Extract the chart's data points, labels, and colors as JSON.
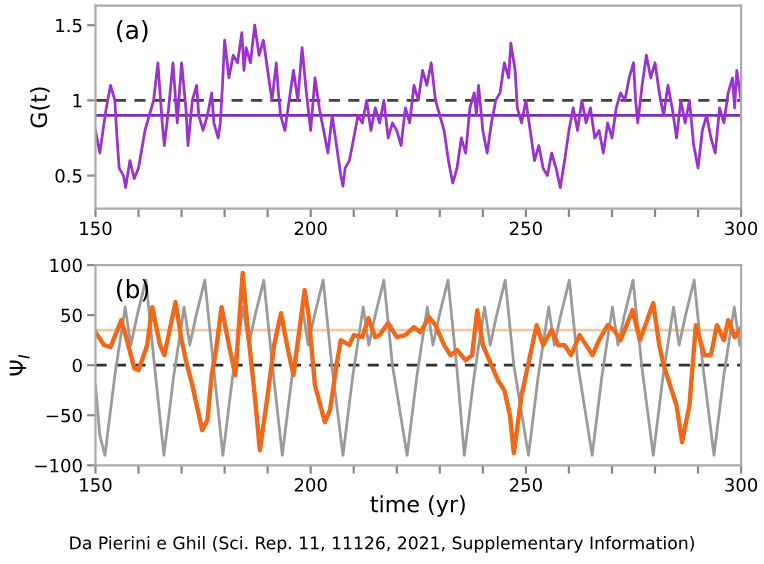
{
  "chart_data": [
    {
      "type": "line",
      "title": "(a)",
      "ylabel": "G(t)",
      "xlim": [
        150,
        300
      ],
      "ylim": [
        0.28,
        1.63
      ],
      "xticks": [
        150,
        {
          "value": 160,
          "label": null
        },
        {
          "value": 170,
          "label": null
        },
        {
          "value": 180,
          "label": null
        },
        {
          "value": 190,
          "label": null
        },
        200,
        {
          "value": 210,
          "label": null
        },
        {
          "value": 220,
          "label": null
        },
        {
          "value": 230,
          "label": null
        },
        {
          "value": 240,
          "label": null
        },
        250,
        {
          "value": 260,
          "label": null
        },
        {
          "value": 270,
          "label": null
        },
        {
          "value": 280,
          "label": null
        },
        {
          "value": 290,
          "label": null
        },
        300
      ],
      "yticks": [
        0.5,
        1,
        1.5
      ],
      "grid": false,
      "legend": false,
      "ref_lines": [
        {
          "axis": "y",
          "value": 1,
          "color": "#404040",
          "line_style": "dashed"
        },
        {
          "axis": "y",
          "value": 0.9,
          "color": "#7a2fb0",
          "line_style": "solid"
        }
      ],
      "series": [
        {
          "color": "#9933cc",
          "x": [
            150,
            151,
            152.5,
            153.5,
            154.5,
            155,
            155.5,
            156.5,
            157,
            158,
            159,
            160,
            161.5,
            162.5,
            163.5,
            164.5,
            165,
            165.5,
            166,
            167,
            168,
            168.5,
            169,
            170,
            171,
            171.5,
            172.5,
            173.5,
            174,
            175,
            176,
            177,
            177.5,
            178.5,
            179,
            179.5,
            180,
            181,
            182,
            183,
            184,
            184.5,
            185,
            186,
            187,
            188,
            189,
            190,
            191,
            192,
            192.5,
            193,
            194,
            195,
            196,
            197,
            198,
            199,
            200,
            201,
            202,
            203,
            204,
            205,
            206,
            207,
            207.5,
            208,
            209,
            210,
            211,
            212,
            213,
            214,
            215,
            216,
            217,
            218,
            219,
            220,
            221,
            222,
            223,
            224,
            225,
            226,
            227,
            228,
            229,
            230,
            231,
            232,
            233,
            234,
            235,
            236,
            237,
            238,
            238.5,
            239,
            240,
            241,
            242,
            243,
            244,
            245,
            246,
            246.5,
            247.5,
            248,
            249,
            250,
            251,
            252,
            253,
            254,
            255,
            256,
            257,
            258,
            259,
            260,
            261,
            262,
            263,
            264,
            265,
            266,
            267,
            268,
            269,
            270,
            271,
            272,
            273,
            274,
            275,
            275.5,
            276,
            277,
            278,
            279,
            280,
            281,
            282,
            283,
            284,
            285,
            286,
            287,
            288,
            289,
            290,
            291,
            292,
            293,
            294,
            295,
            296,
            297,
            298,
            298.5,
            299,
            300
          ],
          "values": [
            0.8,
            0.65,
            0.95,
            1.1,
            1.0,
            0.75,
            0.55,
            0.5,
            0.42,
            0.6,
            0.48,
            0.55,
            0.8,
            0.9,
            1.0,
            1.25,
            1.05,
            0.85,
            0.7,
            0.95,
            1.25,
            1.05,
            0.85,
            1.25,
            0.95,
            0.7,
            1.0,
            1.1,
            0.9,
            0.8,
            0.9,
            1.05,
            0.85,
            0.75,
            0.85,
            1.1,
            1.4,
            1.15,
            1.3,
            1.25,
            1.45,
            1.2,
            1.35,
            1.25,
            1.5,
            1.3,
            1.4,
            1.2,
            1.0,
            1.25,
            1.05,
            0.9,
            0.8,
            1.0,
            1.2,
            1.0,
            1.35,
            1.05,
            0.8,
            1.15,
            0.95,
            0.8,
            0.65,
            0.9,
            0.7,
            0.5,
            0.43,
            0.55,
            0.6,
            0.75,
            0.9,
            0.85,
            1.0,
            0.8,
            0.95,
            0.85,
            1.0,
            0.75,
            0.85,
            0.8,
            0.7,
            0.95,
            0.85,
            1.1,
            1.0,
            1.2,
            1.1,
            1.25,
            1.0,
            0.9,
            0.8,
            0.6,
            0.45,
            0.55,
            0.75,
            0.65,
            0.95,
            1.05,
            0.9,
            1.1,
            0.8,
            0.65,
            0.85,
            1.0,
            1.05,
            1.25,
            1.15,
            1.38,
            1.2,
            0.95,
            0.85,
            1.0,
            0.8,
            0.6,
            0.7,
            0.55,
            0.5,
            0.65,
            0.55,
            0.42,
            0.6,
            0.8,
            0.95,
            0.8,
            1.0,
            0.85,
            0.95,
            0.75,
            0.8,
            0.65,
            0.85,
            0.75,
            0.95,
            1.05,
            1.0,
            1.15,
            1.25,
            1.0,
            0.85,
            1.1,
            1.3,
            1.15,
            1.25,
            1.05,
            0.9,
            1.1,
            0.95,
            0.75,
            1.0,
            0.85,
            1.0,
            0.7,
            0.55,
            0.8,
            0.9,
            0.75,
            0.65,
            0.95,
            0.85,
            1.05,
            1.15,
            0.95,
            1.2,
            1.0
          ]
        }
      ]
    },
    {
      "type": "line",
      "title": "(b)",
      "ylabel": "Ψ$_{I}$",
      "xlabel": "time (yr)",
      "xlim": [
        150,
        300
      ],
      "ylim": [
        -100,
        100
      ],
      "xticks": [
        150,
        {
          "value": 160,
          "label": null
        },
        {
          "value": 170,
          "label": null
        },
        {
          "value": 180,
          "label": null
        },
        {
          "value": 190,
          "label": null
        },
        200,
        {
          "value": 210,
          "label": null
        },
        {
          "value": 220,
          "label": null
        },
        {
          "value": 230,
          "label": null
        },
        {
          "value": 240,
          "label": null
        },
        250,
        {
          "value": 260,
          "label": null
        },
        {
          "value": 270,
          "label": null
        },
        {
          "value": 280,
          "label": null
        },
        {
          "value": 290,
          "label": null
        },
        300
      ],
      "yticks": [
        -100,
        -50,
        0,
        50,
        100
      ],
      "grid": false,
      "legend": false,
      "ref_lines": [
        {
          "axis": "y",
          "value": 0,
          "color": "#303030",
          "line_style": "dashed"
        },
        {
          "axis": "y",
          "value": 35,
          "color": "#f5c9a0",
          "line_style": "solid"
        }
      ],
      "annotations": [
        "Da Pierini e Ghil (Sci. Rep. 11, 11126, 2021, Supplementary Information)"
      ],
      "series": [
        {
          "color": "#9a9a9a",
          "x": [
            150,
            151,
            152.2,
            154.5,
            156.9,
            158.2,
            159.7,
            161.7,
            163.7,
            165.9,
            168.2,
            170.6,
            171.9,
            173.4,
            175.4,
            177.4,
            179.6,
            181.9,
            184.3,
            185.6,
            187.1,
            189.1,
            191.1,
            193.4,
            195.7,
            198.1,
            199.4,
            200.9,
            202.9,
            204.9,
            207.5,
            209.8,
            212.2,
            213.5,
            215.0,
            217.0,
            219.0,
            222.4,
            224.7,
            227.1,
            228.4,
            229.9,
            231.9,
            233.9,
            235.7,
            238.0,
            240.4,
            241.7,
            243.2,
            245.2,
            247.2,
            250.6,
            252.9,
            255.3,
            256.6,
            258.1,
            260.1,
            262.1,
            265.4,
            267.7,
            270.1,
            271.4,
            272.9,
            274.9,
            276.9,
            279.6,
            281.9,
            284.3,
            285.6,
            287.1,
            289.1,
            291.1,
            293.7,
            296.0,
            298.4,
            299.7
          ],
          "values": [
            -20,
            -70,
            -90,
            -10,
            58,
            20,
            50,
            85,
            0,
            -90,
            -10,
            58,
            20,
            50,
            85,
            0,
            -90,
            -10,
            58,
            20,
            50,
            85,
            0,
            -90,
            -10,
            58,
            20,
            50,
            85,
            0,
            -90,
            -10,
            58,
            20,
            50,
            85,
            0,
            -90,
            -10,
            58,
            20,
            50,
            85,
            0,
            -90,
            -10,
            58,
            20,
            50,
            85,
            0,
            -90,
            -10,
            58,
            20,
            50,
            85,
            0,
            -90,
            -10,
            58,
            20,
            50,
            85,
            0,
            -90,
            -10,
            58,
            20,
            50,
            85,
            0,
            -90,
            -10,
            58,
            20
          ]
        },
        {
          "color": "#ee6a1a",
          "x": [
            150,
            152,
            153.5,
            156,
            157,
            159,
            160,
            162,
            163.2,
            165,
            166,
            168.6,
            170,
            171,
            172.5,
            174.8,
            176,
            177,
            178,
            179.3,
            181,
            182.5,
            184.2,
            185.5,
            187,
            188.2,
            190,
            191.5,
            193.1,
            194.5,
            196,
            198.6,
            199.5,
            201,
            203.3,
            204.5,
            206,
            207,
            209,
            210,
            212,
            213.4,
            215,
            216,
            218,
            220,
            222,
            224,
            225.5,
            227.5,
            229,
            231,
            232.5,
            234,
            236,
            237.5,
            238.7,
            240,
            241.5,
            243.5,
            245,
            246.3,
            247.2,
            249,
            251,
            252.5,
            254,
            256,
            257.5,
            259,
            260.5,
            262.5,
            264,
            265.5,
            267,
            269,
            270.5,
            272,
            274.8,
            276.5,
            279.6,
            281,
            282,
            283.5,
            285,
            286.3,
            288,
            289.5,
            291.5,
            293,
            294.4,
            296,
            297,
            298.5,
            300
          ],
          "values": [
            33,
            20,
            18,
            45,
            30,
            -3,
            -5,
            20,
            58,
            20,
            10,
            63,
            25,
            5,
            -20,
            -65,
            -55,
            -10,
            15,
            58,
            20,
            -10,
            92,
            30,
            -30,
            -85,
            -30,
            20,
            52,
            20,
            -10,
            75,
            50,
            -20,
            -57,
            -45,
            0,
            25,
            20,
            30,
            28,
            47,
            28,
            30,
            42,
            28,
            30,
            38,
            33,
            48,
            40,
            20,
            10,
            15,
            5,
            10,
            55,
            20,
            5,
            -15,
            -25,
            -50,
            -88,
            -30,
            10,
            40,
            20,
            35,
            20,
            20,
            10,
            30,
            20,
            10,
            25,
            40,
            35,
            25,
            55,
            25,
            62,
            20,
            0,
            -20,
            -40,
            -77,
            -40,
            40,
            10,
            10,
            40,
            25,
            45,
            28,
            37
          ]
        }
      ]
    }
  ]
}
